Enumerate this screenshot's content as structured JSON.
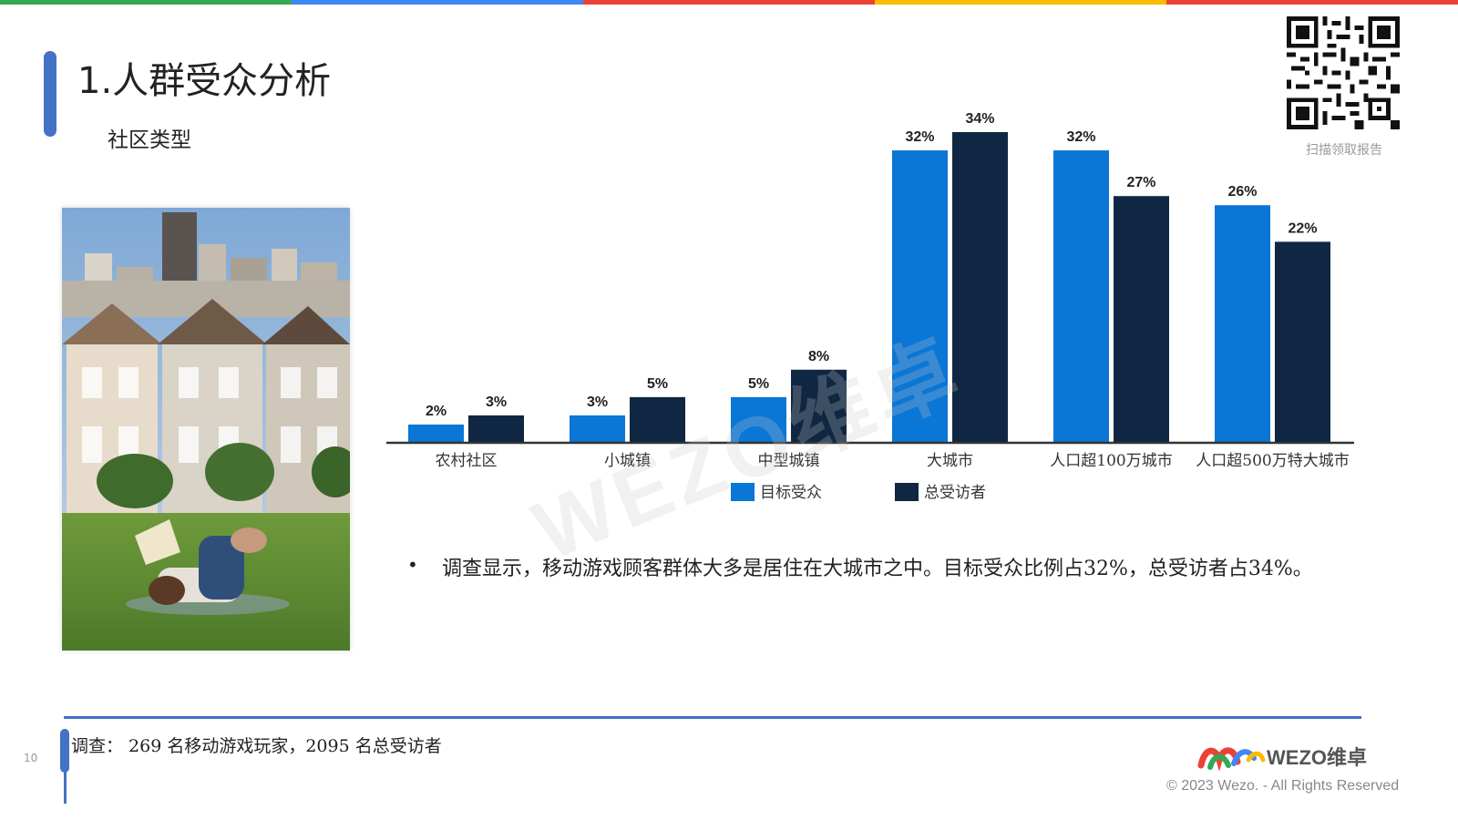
{
  "colors": {
    "topbar": [
      "#34a853",
      "#4285f4",
      "#ea4335",
      "#fbbc05",
      "#ea4335"
    ],
    "accent": "#4472c4",
    "target": "#0a76d6",
    "total": "#0f2742"
  },
  "header": {
    "title": "1.人群受众分析",
    "subtitle": "社区类型"
  },
  "qr": {
    "caption": "扫描领取报告"
  },
  "photo": {
    "icon": "photo-houses-reader"
  },
  "chart_data": {
    "type": "bar",
    "categories": [
      "农村社区",
      "小城镇",
      "中型城镇",
      "大城市",
      "人口超100万城市",
      "人口超500万特大城市"
    ],
    "series": [
      {
        "name": "目标受众",
        "values": [
          2,
          3,
          5,
          32,
          32,
          26
        ],
        "labels": [
          "2%",
          "3%",
          "5%",
          "32%",
          "32%",
          "26%"
        ],
        "color": "#0a76d6"
      },
      {
        "name": "总受访者",
        "values": [
          3,
          5,
          8,
          34,
          27,
          22
        ],
        "labels": [
          "3%",
          "5%",
          "8%",
          "34%",
          "27%",
          "22%"
        ],
        "color": "#0f2742"
      }
    ],
    "ylim": [
      0,
      34
    ],
    "legend": "bottom-center",
    "grid": false
  },
  "note": {
    "bullet": "•",
    "text": "调查显示，移动游戏顾客群体大多是居住在大城市之中。目标受众比例占32%，总受访者占34%。"
  },
  "footer": {
    "survey": "调查：   269 名移动游戏玩家，2095 名总受访者",
    "page_number": "10",
    "logo_text": "WEZO维卓",
    "copyright": "© 2023 Wezo. - All Rights Reserved"
  },
  "watermark": "WEZO维卓"
}
